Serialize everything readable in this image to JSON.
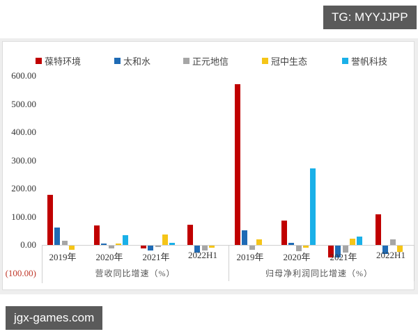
{
  "watermarks": {
    "top": "TG: MYYJJPP",
    "bottom": "jgx-games.com"
  },
  "chart_data": {
    "type": "bar",
    "title": "",
    "xlabel": "",
    "ylabel": "",
    "ylim": [
      -100,
      600
    ],
    "yticks": [
      "600.00",
      "500.00",
      "400.00",
      "300.00",
      "200.00",
      "100.00",
      "0.00",
      "(100.00)"
    ],
    "legend_position": "top",
    "grid": false,
    "groups": [
      {
        "label": "营收同比增速（%）",
        "categories": [
          "2019年",
          "2020年",
          "2021年",
          "2022H1"
        ]
      },
      {
        "label": "归母净利润同比增速（%）",
        "categories": [
          "2019年",
          "2020年",
          "2021年",
          "2022H1"
        ]
      }
    ],
    "categories": [
      "2019年",
      "2020年",
      "2021年",
      "2022H1",
      "2019年",
      "2020年",
      "2021年",
      "2022H1"
    ],
    "series": [
      {
        "name": "葆特环境",
        "color": "#c00000",
        "values": [
          178,
          69,
          -10,
          72,
          570,
          87,
          -42,
          108
        ]
      },
      {
        "name": "太和水",
        "color": "#1f6bb5",
        "values": [
          61,
          5,
          -18,
          -25,
          52,
          8,
          -42,
          -30
        ]
      },
      {
        "name": "正元地信",
        "color": "#a6a6a6",
        "values": [
          15,
          -10,
          -5,
          -18,
          -15,
          -20,
          -25,
          19
        ]
      },
      {
        "name": "冠中生态",
        "color": "#f5c518",
        "values": [
          -15,
          5,
          37,
          -8,
          19,
          -8,
          22,
          -22
        ]
      },
      {
        "name": "誉帆科技",
        "color": "#1ab0e8",
        "values": [
          null,
          35,
          8,
          null,
          null,
          272,
          30,
          null
        ]
      }
    ]
  }
}
